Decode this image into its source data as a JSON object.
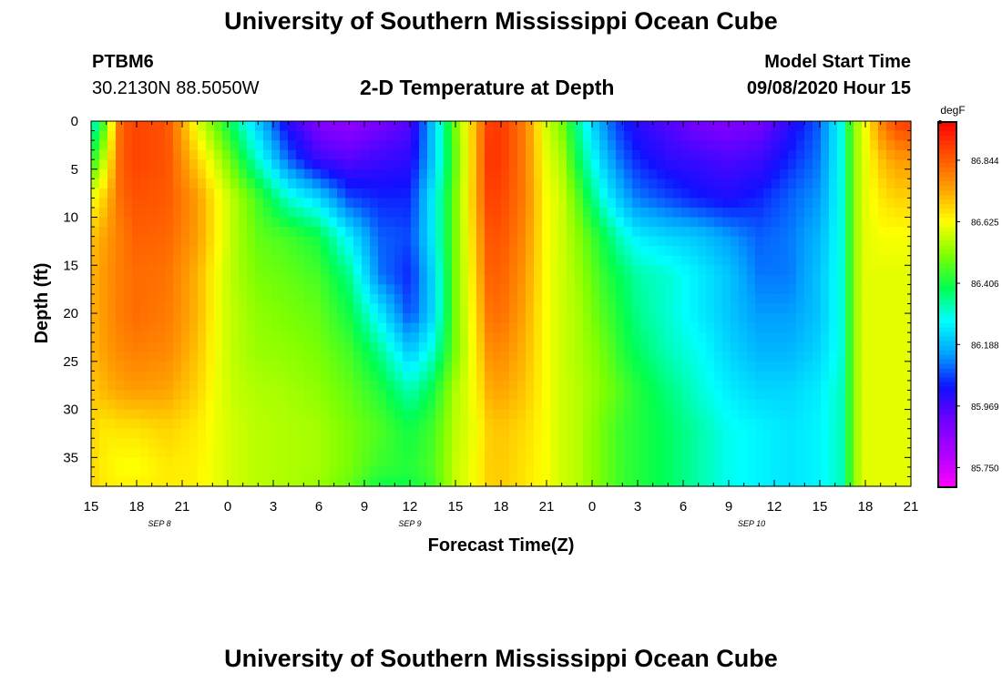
{
  "header": {
    "title": "University of Southern Mississippi Ocean Cube",
    "station_id": "PTBM6",
    "coordinates": "30.2130N 88.5050W",
    "plot_title": "2-D Temperature at Depth",
    "model_start_label": "Model Start Time",
    "model_start_value": "09/08/2020 Hour 15"
  },
  "footer": {
    "title": "University of Southern Mississippi Ocean Cube"
  },
  "chart_data": {
    "type": "heatmap",
    "title": "2-D Temperature at Depth",
    "xlabel": "Forecast Time(Z)",
    "ylabel": "Depth (ft)",
    "x_unit": "forecast hours since model start (09/08/2020 15Z)",
    "x_range": [
      0,
      54
    ],
    "y_range": [
      0,
      38
    ],
    "x_ticks": [
      "15",
      "18",
      "21",
      "0",
      "3",
      "6",
      "9",
      "12",
      "15",
      "18",
      "21",
      "0",
      "3",
      "6",
      "9",
      "12",
      "15",
      "18",
      "21"
    ],
    "y_ticks": [
      "0",
      "5",
      "10",
      "15",
      "20",
      "25",
      "30",
      "35"
    ],
    "y_tick_values": [
      0,
      5,
      10,
      15,
      20,
      25,
      30,
      35
    ],
    "date_labels": [
      {
        "text": "SEP 8",
        "hour": 4.5
      },
      {
        "text": "SEP 9",
        "hour": 21
      },
      {
        "text": "SEP 10",
        "hour": 43.5
      }
    ],
    "colorbar": {
      "unit": "degF",
      "tick_labels": [
        "86.844",
        "86.625",
        "86.406",
        "86.188",
        "85.969",
        "85.750"
      ],
      "tick_values": [
        86.844,
        86.625,
        86.406,
        86.188,
        85.969,
        85.75
      ],
      "range": [
        85.68,
        86.98
      ],
      "colors": [
        "#ff00ff",
        "#b000ff",
        "#7000ff",
        "#1010ff",
        "#00a0ff",
        "#00ffff",
        "#00ff50",
        "#80ff00",
        "#ffff00",
        "#ffa000",
        "#ff5000",
        "#ff0000"
      ]
    },
    "depths": [
      0,
      4,
      8,
      12,
      16,
      20,
      24,
      28,
      32,
      36,
      38
    ],
    "times": [
      0,
      0.5,
      1,
      2,
      3,
      5,
      7,
      8.5,
      9.5,
      11,
      13,
      15,
      17,
      19,
      21,
      22.5,
      24,
      25.5,
      26,
      27,
      28.5,
      30,
      31,
      32,
      33,
      34,
      35,
      36,
      38,
      40,
      42,
      44,
      46,
      48,
      49.5,
      50,
      50.5,
      51,
      52,
      53,
      54
    ],
    "values": [
      [
        86.3,
        86.35,
        86.5,
        86.85,
        86.88,
        86.86,
        86.6,
        86.45,
        86.35,
        86.2,
        86.0,
        85.88,
        85.85,
        85.9,
        85.95,
        86.2,
        86.5,
        86.75,
        86.88,
        86.9,
        86.8,
        86.58,
        86.5,
        86.35,
        86.22,
        86.12,
        86.05,
        86.0,
        85.95,
        85.9,
        85.88,
        85.9,
        86.0,
        86.1,
        86.3,
        86.45,
        86.55,
        86.62,
        86.78,
        86.88,
        86.9
      ],
      [
        86.4,
        86.5,
        86.6,
        86.85,
        86.88,
        86.86,
        86.68,
        86.55,
        86.45,
        86.3,
        86.1,
        85.98,
        85.95,
        85.98,
        86.0,
        86.2,
        86.48,
        86.75,
        86.9,
        86.9,
        86.8,
        86.6,
        86.55,
        86.4,
        86.28,
        86.18,
        86.1,
        86.05,
        86.0,
        85.98,
        85.96,
        85.98,
        86.05,
        86.12,
        86.3,
        86.45,
        86.55,
        86.6,
        86.7,
        86.75,
        86.75
      ],
      [
        86.62,
        86.65,
        86.7,
        86.83,
        86.86,
        86.85,
        86.75,
        86.62,
        86.55,
        86.45,
        86.3,
        86.22,
        86.08,
        86.05,
        86.05,
        86.25,
        86.5,
        86.75,
        86.88,
        86.88,
        86.8,
        86.62,
        86.58,
        86.48,
        86.36,
        86.26,
        86.18,
        86.12,
        86.08,
        86.04,
        86.02,
        86.05,
        86.1,
        86.15,
        86.3,
        86.45,
        86.55,
        86.6,
        86.65,
        86.68,
        86.68
      ],
      [
        86.7,
        86.72,
        86.75,
        86.8,
        86.84,
        86.83,
        86.75,
        86.62,
        86.55,
        86.48,
        86.45,
        86.4,
        86.25,
        86.1,
        86.08,
        86.25,
        86.5,
        86.72,
        86.85,
        86.86,
        86.78,
        86.62,
        86.58,
        86.52,
        86.45,
        86.38,
        86.3,
        86.25,
        86.22,
        86.2,
        86.15,
        86.1,
        86.12,
        86.18,
        86.3,
        86.45,
        86.55,
        86.6,
        86.62,
        86.62,
        86.62
      ],
      [
        86.72,
        86.74,
        86.76,
        86.8,
        86.82,
        86.81,
        86.72,
        86.6,
        86.55,
        86.5,
        86.48,
        86.45,
        86.35,
        86.12,
        86.05,
        86.22,
        86.5,
        86.7,
        86.83,
        86.84,
        86.76,
        86.62,
        86.58,
        86.54,
        86.48,
        86.42,
        86.38,
        86.33,
        86.3,
        86.25,
        86.2,
        86.12,
        86.12,
        86.2,
        86.3,
        86.45,
        86.55,
        86.6,
        86.6,
        86.6,
        86.6
      ],
      [
        86.72,
        86.74,
        86.76,
        86.8,
        86.82,
        86.8,
        86.72,
        86.6,
        86.56,
        86.52,
        86.5,
        86.48,
        86.4,
        86.25,
        86.08,
        86.22,
        86.5,
        86.68,
        86.8,
        86.82,
        86.74,
        86.62,
        86.58,
        86.55,
        86.5,
        86.45,
        86.4,
        86.35,
        86.3,
        86.25,
        86.2,
        86.15,
        86.15,
        86.2,
        86.3,
        86.45,
        86.55,
        86.6,
        86.6,
        86.6,
        86.6
      ],
      [
        86.72,
        86.73,
        86.75,
        86.78,
        86.79,
        86.78,
        86.7,
        86.6,
        86.56,
        86.53,
        86.52,
        86.5,
        86.45,
        86.35,
        86.2,
        86.3,
        86.5,
        86.66,
        86.76,
        86.78,
        86.72,
        86.62,
        86.58,
        86.55,
        86.52,
        86.48,
        86.42,
        86.38,
        86.32,
        86.28,
        86.22,
        86.18,
        86.18,
        86.22,
        86.3,
        86.45,
        86.55,
        86.6,
        86.6,
        86.6,
        86.6
      ],
      [
        86.7,
        86.7,
        86.72,
        86.74,
        86.75,
        86.74,
        86.68,
        86.6,
        86.57,
        86.55,
        86.54,
        86.52,
        86.48,
        86.42,
        86.32,
        86.4,
        86.55,
        86.64,
        86.72,
        86.74,
        86.7,
        86.62,
        86.58,
        86.56,
        86.53,
        86.5,
        86.46,
        86.42,
        86.36,
        86.3,
        86.25,
        86.22,
        86.22,
        86.25,
        86.32,
        86.45,
        86.55,
        86.6,
        86.6,
        86.6,
        86.6
      ],
      [
        86.68,
        86.66,
        86.65,
        86.66,
        86.66,
        86.68,
        86.65,
        86.6,
        86.58,
        86.56,
        86.55,
        86.54,
        86.5,
        86.46,
        86.4,
        86.45,
        86.56,
        86.62,
        86.68,
        86.7,
        86.67,
        86.62,
        86.58,
        86.56,
        86.52,
        86.48,
        86.44,
        86.42,
        86.38,
        86.33,
        86.28,
        86.26,
        86.24,
        86.26,
        86.32,
        86.45,
        86.55,
        86.6,
        86.6,
        86.6,
        86.6
      ],
      [
        86.68,
        86.65,
        86.64,
        86.62,
        86.62,
        86.65,
        86.64,
        86.6,
        86.58,
        86.56,
        86.55,
        86.54,
        86.5,
        86.44,
        86.42,
        86.46,
        86.57,
        86.63,
        86.68,
        86.69,
        86.66,
        86.62,
        86.58,
        86.56,
        86.52,
        86.48,
        86.44,
        86.42,
        86.38,
        86.33,
        86.28,
        86.26,
        86.24,
        86.26,
        86.32,
        86.45,
        86.55,
        86.6,
        86.6,
        86.6,
        86.6
      ],
      [
        86.68,
        86.66,
        86.65,
        86.64,
        86.64,
        86.65,
        86.64,
        86.6,
        86.58,
        86.56,
        86.55,
        86.53,
        86.48,
        86.4,
        86.4,
        86.44,
        86.57,
        86.63,
        86.68,
        86.69,
        86.66,
        86.62,
        86.58,
        86.56,
        86.52,
        86.48,
        86.44,
        86.42,
        86.38,
        86.33,
        86.28,
        86.26,
        86.24,
        86.26,
        86.32,
        86.45,
        86.55,
        86.6,
        86.6,
        86.6,
        86.6
      ]
    ]
  }
}
